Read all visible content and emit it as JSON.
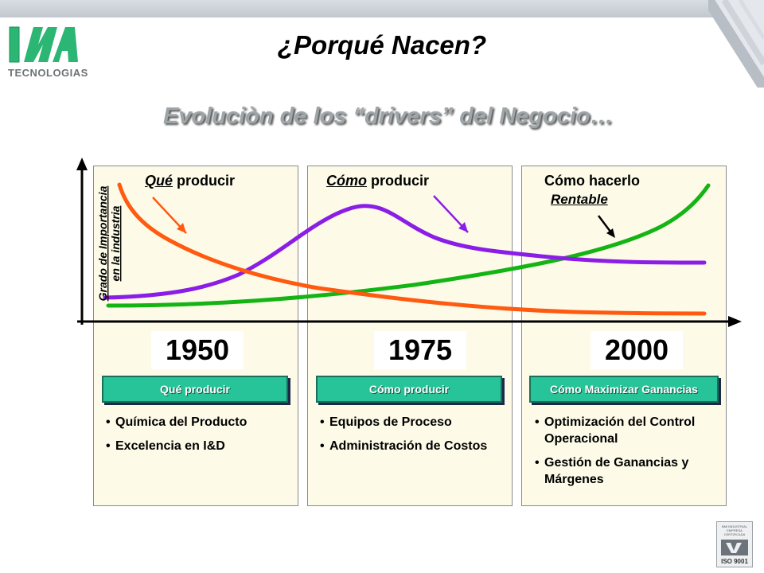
{
  "header": {
    "logo_text": "TECNOLOGIAS",
    "title": "¿Porqué Nacen?",
    "subtitle": "Evoluciòn de los “drivers” del Negocio…"
  },
  "chart": {
    "y_axis_line1": "Grado de Importancia",
    "y_axis_line2": "en la industria",
    "colors": {
      "orange": "#ff5a10",
      "purple": "#8b1ee6",
      "green": "#14b414",
      "section": "#27c49a"
    }
  },
  "phases": [
    {
      "label_underlined": "Qué",
      "label_rest": " producir",
      "year": "1950"
    },
    {
      "label_underlined": "Cómo",
      "label_rest": " producir",
      "year": "1975"
    },
    {
      "label_line1": "Cómo hacerlo",
      "label_line2": "Rentable",
      "year": "2000"
    }
  ],
  "sections": [
    {
      "title": "Qué producir",
      "bullets": [
        "Química del Producto",
        "Excelencia en I&D"
      ]
    },
    {
      "title": "Cómo producir",
      "bullets": [
        "Equipos de Proceso",
        "Administración de Costos"
      ]
    },
    {
      "title": "Cómo Maximizar Ganancias",
      "bullets": [
        "Optimización del Control Operacional",
        "Gestión de Ganancias y Márgenes"
      ]
    }
  ],
  "badge": {
    "top_text": "BMI INDUSTRIAL EMPRESA CERTIFICADA",
    "text": "ISO 9001",
    "icon": "bvqi-certification-icon"
  }
}
